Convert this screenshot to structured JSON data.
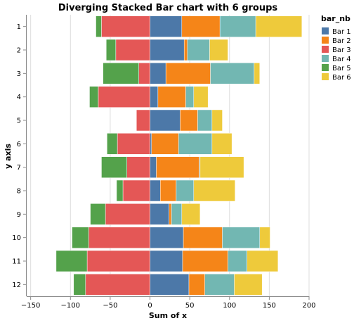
{
  "chart_data": {
    "type": "bar",
    "orientation": "horizontal",
    "stacked": "diverging",
    "title": "Diverging Stacked Bar chart with 6 groups",
    "xlabel": "Sum of x",
    "ylabel": "y axis",
    "xlim": [
      -155,
      200
    ],
    "x_ticks": [
      -150,
      -100,
      -50,
      0,
      50,
      100,
      150,
      200
    ],
    "grid": "x",
    "legend": {
      "title": "bar_nb",
      "position": "right"
    },
    "categories": [
      "1",
      "2",
      "3",
      "4",
      "5",
      "6",
      "7",
      "8",
      "9",
      "10",
      "11",
      "12"
    ],
    "series": [
      {
        "name": "Bar 1",
        "color": "#4c78a8",
        "values": [
          40,
          43,
          20,
          10,
          38,
          2,
          8,
          13,
          24,
          42,
          41,
          49
        ]
      },
      {
        "name": "Bar 2",
        "color": "#f58518",
        "values": [
          48,
          4,
          56,
          35,
          22,
          34,
          54,
          20,
          3,
          49,
          57,
          20
        ]
      },
      {
        "name": "Bar 3",
        "color": "#e45756",
        "values": [
          -61,
          -43,
          -14,
          -65,
          -17,
          -41,
          -29,
          -34,
          -56,
          -77,
          -79,
          -81
        ]
      },
      {
        "name": "Bar 4",
        "color": "#72b7b2",
        "values": [
          45,
          28,
          55,
          10,
          18,
          42,
          1,
          22,
          13,
          47,
          24,
          37
        ]
      },
      {
        "name": "Bar 5",
        "color": "#54a24b",
        "values": [
          -7,
          -12,
          -45,
          -11,
          0,
          -13,
          -32,
          -8,
          -19,
          -21,
          -39,
          -15
        ]
      },
      {
        "name": "Bar 6",
        "color": "#eeca3b",
        "values": [
          58,
          23,
          7,
          18,
          13,
          25,
          55,
          52,
          23,
          13,
          39,
          35
        ]
      }
    ]
  }
}
